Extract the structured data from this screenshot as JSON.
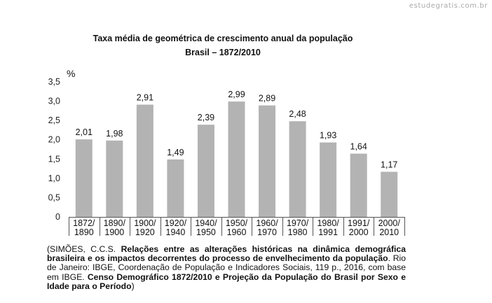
{
  "watermark": "estudegratis.com.br",
  "chart_data": {
    "type": "bar",
    "title": "Taxa média de geométrica de crescimento anual da população",
    "subtitle": "Brasil – 1872/2010",
    "ylabel": "%",
    "xlabel": "",
    "ylim": [
      0,
      3.5
    ],
    "yticks": [
      "0",
      "0,5",
      "1,0",
      "1,5",
      "2,0",
      "2,5",
      "3,0",
      "3,5"
    ],
    "grid": false,
    "bar_color": "#b3b3b3",
    "categories": [
      [
        "1872/",
        "1890"
      ],
      [
        "1890/",
        "1900"
      ],
      [
        "1900/",
        "1920"
      ],
      [
        "1920/",
        "1940"
      ],
      [
        "1940/",
        "1950"
      ],
      [
        "1950/",
        "1960"
      ],
      [
        "1960/",
        "1970"
      ],
      [
        "1970/",
        "1980"
      ],
      [
        "1980/",
        "1991"
      ],
      [
        "1991/",
        "2000"
      ],
      [
        "2000/",
        "2010"
      ]
    ],
    "values": [
      2.01,
      1.98,
      2.91,
      1.49,
      2.39,
      2.99,
      2.89,
      2.48,
      1.93,
      1.64,
      1.17
    ],
    "value_labels": [
      "2,01",
      "1,98",
      "2,91",
      "1,49",
      "2,39",
      "2,99",
      "2,89",
      "2,48",
      "1,93",
      "1,64",
      "1,17"
    ]
  },
  "citation": {
    "p1": "(SIMÕES, C.C.S. ",
    "p2": "Relações entre as alterações históricas na dinâmica demográfica brasileira e os impactos decorrentes do processo de envelhecimento da população",
    "p3": ". Rio de Janeiro: IBGE, Coordenação de População e Indicadores Sociais, 119 p., 2016, com base em IBGE. ",
    "p4": "Censo Demográfico 1872/2010 e Projeção da População do Brasil por Sexo e Idade para o Período",
    "p5": ")"
  }
}
